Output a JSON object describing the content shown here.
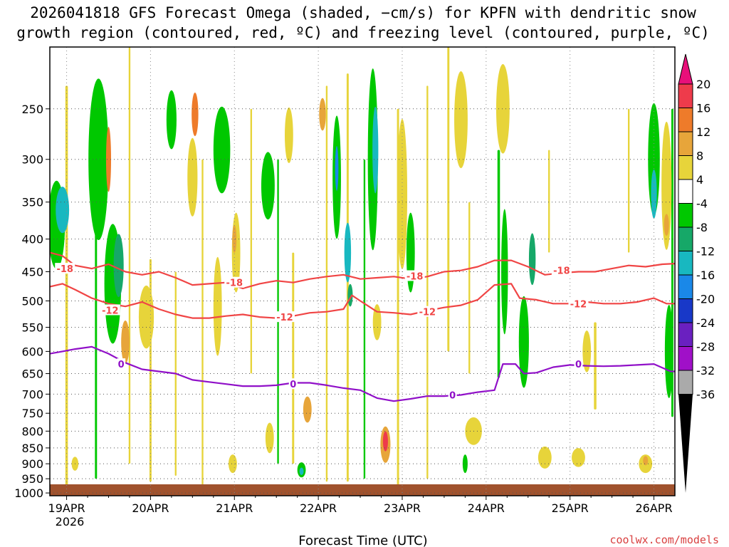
{
  "chart_data": {
    "type": "heatmap",
    "title_lines": [
      "2026041818 GFS Forecast Omega (shaded, −cm/s) for KPFN with dendritic snow",
      "growth region (contoured, red, ºC) and freezing level (contoured, purple, ºC)"
    ],
    "xlabel": "Forecast Time (UTC)",
    "ylabel": "",
    "x_ticks": [
      "19APR",
      "20APR",
      "21APR",
      "22APR",
      "23APR",
      "24APR",
      "25APR",
      "26APR"
    ],
    "x_year_label": "2026",
    "x_range_days": [
      -0.2,
      7.25
    ],
    "y_ticks": [
      250,
      300,
      350,
      400,
      450,
      500,
      550,
      600,
      650,
      700,
      750,
      800,
      850,
      900,
      950,
      1000
    ],
    "y_range_hpa": [
      200,
      1010
    ],
    "y_scale": "log",
    "grid": true,
    "colorbar": {
      "labels": [
        "20",
        "16",
        "12",
        "8",
        "4",
        "-4",
        "-8",
        "-12",
        "-16",
        "-20",
        "-24",
        "-28",
        "-32",
        "-36"
      ],
      "colors": [
        "#ee3b4b",
        "#ee7b2a",
        "#e7a53a",
        "#e7d43a",
        "#ffffff",
        "#00c800",
        "#16a868",
        "#18b8c0",
        "#1a88e8",
        "#1838c8",
        "#6a20c0",
        "#a010c8",
        "#aaaaaa"
      ],
      "top_arrow_color": "#e8107a",
      "bottom_arrow_color": "#000000"
    },
    "contours": [
      {
        "name": "-18",
        "color": "#f04545",
        "labels": [
          {
            "text": "-18",
            "x": -0.02,
            "p": 445
          },
          {
            "text": "-18",
            "x": 2.0,
            "p": 468
          },
          {
            "text": "-18",
            "x": 4.15,
            "p": 457
          },
          {
            "text": "-18",
            "x": 5.9,
            "p": 448
          }
        ],
        "points": [
          [
            -0.2,
            420
          ],
          [
            -0.05,
            425
          ],
          [
            0.1,
            440
          ],
          [
            0.3,
            445
          ],
          [
            0.5,
            438
          ],
          [
            0.7,
            450
          ],
          [
            0.9,
            455
          ],
          [
            1.1,
            450
          ],
          [
            1.3,
            460
          ],
          [
            1.5,
            472
          ],
          [
            1.7,
            470
          ],
          [
            1.9,
            468
          ],
          [
            2.1,
            478
          ],
          [
            2.3,
            470
          ],
          [
            2.5,
            465
          ],
          [
            2.7,
            468
          ],
          [
            2.9,
            462
          ],
          [
            3.1,
            458
          ],
          [
            3.3,
            455
          ],
          [
            3.5,
            462
          ],
          [
            3.7,
            460
          ],
          [
            3.9,
            458
          ],
          [
            4.1,
            462
          ],
          [
            4.3,
            458
          ],
          [
            4.5,
            450
          ],
          [
            4.7,
            448
          ],
          [
            4.9,
            442
          ],
          [
            5.1,
            432
          ],
          [
            5.3,
            432
          ],
          [
            5.5,
            442
          ],
          [
            5.7,
            455
          ],
          [
            5.9,
            452
          ],
          [
            6.1,
            450
          ],
          [
            6.3,
            450
          ],
          [
            6.5,
            445
          ],
          [
            6.7,
            440
          ],
          [
            6.9,
            442
          ],
          [
            7.1,
            438
          ],
          [
            7.25,
            437
          ]
        ]
      },
      {
        "name": "-12",
        "color": "#f04545",
        "labels": [
          {
            "text": "-12",
            "x": 0.52,
            "p": 517
          },
          {
            "text": "-12",
            "x": 2.6,
            "p": 530
          },
          {
            "text": "-12",
            "x": 4.3,
            "p": 520
          },
          {
            "text": "-12",
            "x": 6.1,
            "p": 505
          }
        ],
        "points": [
          [
            -0.2,
            475
          ],
          [
            -0.05,
            470
          ],
          [
            0.1,
            480
          ],
          [
            0.3,
            495
          ],
          [
            0.5,
            505
          ],
          [
            0.7,
            510
          ],
          [
            0.9,
            502
          ],
          [
            1.1,
            515
          ],
          [
            1.3,
            525
          ],
          [
            1.5,
            532
          ],
          [
            1.7,
            532
          ],
          [
            1.9,
            528
          ],
          [
            2.1,
            525
          ],
          [
            2.3,
            530
          ],
          [
            2.5,
            532
          ],
          [
            2.7,
            528
          ],
          [
            2.9,
            522
          ],
          [
            3.1,
            520
          ],
          [
            3.3,
            515
          ],
          [
            3.4,
            490
          ],
          [
            3.5,
            500
          ],
          [
            3.7,
            520
          ],
          [
            3.9,
            522
          ],
          [
            4.1,
            525
          ],
          [
            4.3,
            518
          ],
          [
            4.5,
            512
          ],
          [
            4.7,
            508
          ],
          [
            4.9,
            498
          ],
          [
            5.1,
            472
          ],
          [
            5.3,
            470
          ],
          [
            5.4,
            495
          ],
          [
            5.6,
            498
          ],
          [
            5.8,
            505
          ],
          [
            6.0,
            505
          ],
          [
            6.2,
            502
          ],
          [
            6.4,
            505
          ],
          [
            6.6,
            505
          ],
          [
            6.8,
            502
          ],
          [
            7.0,
            495
          ],
          [
            7.15,
            505
          ],
          [
            7.25,
            505
          ]
        ]
      },
      {
        "name": "0",
        "color": "#9010c8",
        "labels": [
          {
            "text": "0",
            "x": 0.65,
            "p": 628
          },
          {
            "text": "0",
            "x": 2.7,
            "p": 675
          },
          {
            "text": "0",
            "x": 4.6,
            "p": 702
          },
          {
            "text": "0",
            "x": 6.1,
            "p": 628
          }
        ],
        "points": [
          [
            -0.2,
            605
          ],
          [
            -0.05,
            600
          ],
          [
            0.1,
            595
          ],
          [
            0.3,
            590
          ],
          [
            0.5,
            605
          ],
          [
            0.7,
            625
          ],
          [
            0.9,
            640
          ],
          [
            1.1,
            645
          ],
          [
            1.3,
            650
          ],
          [
            1.5,
            665
          ],
          [
            1.7,
            670
          ],
          [
            1.9,
            675
          ],
          [
            2.1,
            680
          ],
          [
            2.3,
            680
          ],
          [
            2.5,
            678
          ],
          [
            2.7,
            672
          ],
          [
            2.9,
            672
          ],
          [
            3.1,
            678
          ],
          [
            3.3,
            685
          ],
          [
            3.5,
            690
          ],
          [
            3.7,
            710
          ],
          [
            3.9,
            718
          ],
          [
            4.1,
            712
          ],
          [
            4.3,
            705
          ],
          [
            4.5,
            705
          ],
          [
            4.7,
            702
          ],
          [
            4.9,
            695
          ],
          [
            5.1,
            690
          ],
          [
            5.2,
            628
          ],
          [
            5.35,
            628
          ],
          [
            5.45,
            650
          ],
          [
            5.6,
            648
          ],
          [
            5.8,
            635
          ],
          [
            6.0,
            630
          ],
          [
            6.2,
            632
          ],
          [
            6.4,
            633
          ],
          [
            6.6,
            632
          ],
          [
            6.8,
            630
          ],
          [
            7.0,
            628
          ],
          [
            7.2,
            645
          ],
          [
            7.25,
            645
          ]
        ]
      }
    ],
    "omega_blobs": [
      {
        "x": -0.12,
        "p": 380,
        "rx": 0.1,
        "rp": 120,
        "color": "#00c800"
      },
      {
        "x": -0.05,
        "p": 360,
        "rx": 0.08,
        "rp": 60,
        "color": "#18b8c0"
      },
      {
        "x": 0.38,
        "p": 300,
        "rx": 0.12,
        "rp": 170,
        "color": "#00c800"
      },
      {
        "x": 0.55,
        "p": 470,
        "rx": 0.1,
        "rp": 200,
        "color": "#00c800"
      },
      {
        "x": 0.62,
        "p": 440,
        "rx": 0.06,
        "rp": 100,
        "color": "#16a868"
      },
      {
        "x": 0.5,
        "p": 300,
        "rx": 0.03,
        "rp": 70,
        "color": "#ee7b2a"
      },
      {
        "x": 0.7,
        "p": 580,
        "rx": 0.05,
        "rp": 90,
        "color": "#e7a53a"
      },
      {
        "x": 0.95,
        "p": 530,
        "rx": 0.09,
        "rp": 120,
        "color": "#e7d43a"
      },
      {
        "x": 0.1,
        "p": 900,
        "rx": 0.04,
        "rp": 45,
        "color": "#e7d43a"
      },
      {
        "x": 1.25,
        "p": 260,
        "rx": 0.06,
        "rp": 55,
        "color": "#00c800"
      },
      {
        "x": 1.53,
        "p": 255,
        "rx": 0.04,
        "rp": 40,
        "color": "#ee7b2a"
      },
      {
        "x": 1.5,
        "p": 320,
        "rx": 0.06,
        "rp": 90,
        "color": "#e7d43a"
      },
      {
        "x": 1.85,
        "p": 290,
        "rx": 0.1,
        "rp": 90,
        "color": "#00c800"
      },
      {
        "x": 1.8,
        "p": 510,
        "rx": 0.05,
        "rp": 180,
        "color": "#e7d43a"
      },
      {
        "x": 2.02,
        "p": 420,
        "rx": 0.05,
        "rp": 120,
        "color": "#e7d43a"
      },
      {
        "x": 2.0,
        "p": 400,
        "rx": 0.025,
        "rp": 40,
        "color": "#e7a53a"
      },
      {
        "x": 1.98,
        "p": 900,
        "rx": 0.05,
        "rp": 60,
        "color": "#e7d43a"
      },
      {
        "x": 2.4,
        "p": 330,
        "rx": 0.08,
        "rp": 80,
        "color": "#00c800"
      },
      {
        "x": 2.42,
        "p": 820,
        "rx": 0.05,
        "rp": 90,
        "color": "#e7d43a"
      },
      {
        "x": 2.87,
        "p": 740,
        "rx": 0.05,
        "rp": 70,
        "color": "#e7a53a"
      },
      {
        "x": 2.65,
        "p": 275,
        "rx": 0.05,
        "rp": 55,
        "color": "#e7d43a"
      },
      {
        "x": 2.8,
        "p": 920,
        "rx": 0.05,
        "rp": 50,
        "color": "#00c800"
      },
      {
        "x": 2.8,
        "p": 925,
        "rx": 0.025,
        "rp": 25,
        "color": "#18b8c0"
      },
      {
        "x": 3.05,
        "p": 255,
        "rx": 0.04,
        "rp": 30,
        "color": "#e7a53a"
      },
      {
        "x": 3.22,
        "p": 320,
        "rx": 0.05,
        "rp": 140,
        "color": "#00c800"
      },
      {
        "x": 3.22,
        "p": 310,
        "rx": 0.02,
        "rp": 50,
        "color": "#1a88e8"
      },
      {
        "x": 3.35,
        "p": 420,
        "rx": 0.04,
        "rp": 90,
        "color": "#18b8c0"
      },
      {
        "x": 3.38,
        "p": 490,
        "rx": 0.03,
        "rp": 40,
        "color": "#16a868"
      },
      {
        "x": 3.65,
        "p": 300,
        "rx": 0.06,
        "rp": 190,
        "color": "#00c800"
      },
      {
        "x": 3.68,
        "p": 290,
        "rx": 0.035,
        "rp": 90,
        "color": "#18b8c0"
      },
      {
        "x": 3.7,
        "p": 540,
        "rx": 0.05,
        "rp": 70,
        "color": "#e7d43a"
      },
      {
        "x": 3.8,
        "p": 840,
        "rx": 0.06,
        "rp": 110,
        "color": "#e7a53a"
      },
      {
        "x": 3.8,
        "p": 830,
        "rx": 0.03,
        "rp": 60,
        "color": "#ee3b4b"
      },
      {
        "x": 4.0,
        "p": 340,
        "rx": 0.06,
        "rp": 180,
        "color": "#e7d43a"
      },
      {
        "x": 4.1,
        "p": 420,
        "rx": 0.05,
        "rp": 120,
        "color": "#00c800"
      },
      {
        "x": 4.7,
        "p": 260,
        "rx": 0.08,
        "rp": 90,
        "color": "#e7d43a"
      },
      {
        "x": 4.75,
        "p": 900,
        "rx": 0.03,
        "rp": 60,
        "color": "#00c800"
      },
      {
        "x": 4.85,
        "p": 800,
        "rx": 0.1,
        "rp": 80,
        "color": "#e7d43a"
      },
      {
        "x": 5.2,
        "p": 250,
        "rx": 0.08,
        "rp": 80,
        "color": "#e7d43a"
      },
      {
        "x": 5.22,
        "p": 450,
        "rx": 0.04,
        "rp": 200,
        "color": "#00c800"
      },
      {
        "x": 5.45,
        "p": 580,
        "rx": 0.06,
        "rp": 190,
        "color": "#00c800"
      },
      {
        "x": 5.55,
        "p": 430,
        "rx": 0.04,
        "rp": 80,
        "color": "#16a868"
      },
      {
        "x": 5.7,
        "p": 880,
        "rx": 0.08,
        "rp": 70,
        "color": "#e7d43a"
      },
      {
        "x": 6.2,
        "p": 600,
        "rx": 0.05,
        "rp": 90,
        "color": "#e7d43a"
      },
      {
        "x": 6.1,
        "p": 880,
        "rx": 0.08,
        "rp": 60,
        "color": "#e7d43a"
      },
      {
        "x": 6.9,
        "p": 900,
        "rx": 0.08,
        "rp": 60,
        "color": "#e7d43a"
      },
      {
        "x": 6.9,
        "p": 890,
        "rx": 0.03,
        "rp": 30,
        "color": "#e7a53a"
      },
      {
        "x": 7.0,
        "p": 300,
        "rx": 0.07,
        "rp": 120,
        "color": "#00c800"
      },
      {
        "x": 7.0,
        "p": 340,
        "rx": 0.035,
        "rp": 60,
        "color": "#18b8c0"
      },
      {
        "x": 7.15,
        "p": 330,
        "rx": 0.06,
        "rp": 150,
        "color": "#e7d43a"
      },
      {
        "x": 7.15,
        "p": 380,
        "rx": 0.03,
        "rp": 30,
        "color": "#e7a53a"
      },
      {
        "x": 7.18,
        "p": 600,
        "rx": 0.05,
        "rp": 200,
        "color": "#00c800"
      }
    ],
    "omega_streaks": [
      {
        "x": 0.0,
        "p1": 230,
        "p2": 980,
        "w": 0.03,
        "color": "#e7d43a"
      },
      {
        "x": 0.35,
        "p1": 350,
        "p2": 950,
        "w": 0.025,
        "color": "#00c800"
      },
      {
        "x": 0.75,
        "p1": 200,
        "p2": 900,
        "w": 0.02,
        "color": "#e7d43a"
      },
      {
        "x": 1.0,
        "p1": 430,
        "p2": 960,
        "w": 0.025,
        "color": "#e7d43a"
      },
      {
        "x": 1.3,
        "p1": 450,
        "p2": 940,
        "w": 0.02,
        "color": "#e7d43a"
      },
      {
        "x": 1.62,
        "p1": 300,
        "p2": 980,
        "w": 0.02,
        "color": "#e7d43a"
      },
      {
        "x": 2.2,
        "p1": 250,
        "p2": 650,
        "w": 0.02,
        "color": "#e7d43a"
      },
      {
        "x": 2.52,
        "p1": 300,
        "p2": 900,
        "w": 0.02,
        "color": "#00c800"
      },
      {
        "x": 2.7,
        "p1": 420,
        "p2": 900,
        "w": 0.025,
        "color": "#e7d43a"
      },
      {
        "x": 3.1,
        "p1": 230,
        "p2": 960,
        "w": 0.02,
        "color": "#e7d43a"
      },
      {
        "x": 3.35,
        "p1": 220,
        "p2": 960,
        "w": 0.025,
        "color": "#e7d43a"
      },
      {
        "x": 3.55,
        "p1": 300,
        "p2": 950,
        "w": 0.02,
        "color": "#00c800"
      },
      {
        "x": 3.95,
        "p1": 250,
        "p2": 980,
        "w": 0.025,
        "color": "#e7d43a"
      },
      {
        "x": 4.3,
        "p1": 230,
        "p2": 950,
        "w": 0.02,
        "color": "#e7d43a"
      },
      {
        "x": 4.55,
        "p1": 200,
        "p2": 600,
        "w": 0.025,
        "color": "#e7d43a"
      },
      {
        "x": 4.8,
        "p1": 350,
        "p2": 650,
        "w": 0.02,
        "color": "#e7d43a"
      },
      {
        "x": 5.15,
        "p1": 290,
        "p2": 660,
        "w": 0.03,
        "color": "#00c800"
      },
      {
        "x": 5.75,
        "p1": 290,
        "p2": 420,
        "w": 0.02,
        "color": "#e7d43a"
      },
      {
        "x": 6.3,
        "p1": 540,
        "p2": 740,
        "w": 0.03,
        "color": "#e7d43a"
      },
      {
        "x": 6.7,
        "p1": 250,
        "p2": 420,
        "w": 0.02,
        "color": "#e7d43a"
      },
      {
        "x": 7.22,
        "p1": 250,
        "p2": 760,
        "w": 0.025,
        "color": "#00c800"
      }
    ]
  },
  "credit": "coolwx.com/models"
}
